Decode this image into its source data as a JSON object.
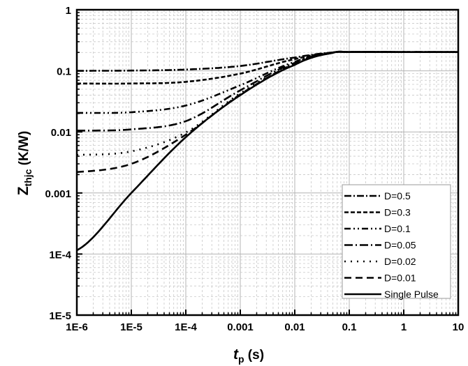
{
  "chart_data": {
    "type": "line",
    "title": "",
    "xlabel": "t_p (s)",
    "xlabel_main": "t",
    "xlabel_sub": "p",
    "xlabel_unit": " (s)",
    "ylabel": "Z_thjc (K/W)",
    "ylabel_main": "Z",
    "ylabel_sub": "thjc",
    "ylabel_unit": " (K/W)",
    "xscale": "log",
    "yscale": "log",
    "xlim": [
      1e-06,
      10
    ],
    "ylim": [
      1e-05,
      1
    ],
    "x_ticks": [
      "1E-6",
      "1E-5",
      "1E-4",
      "0.001",
      "0.01",
      "0.1",
      "1",
      "10"
    ],
    "y_ticks": [
      "1E-5",
      "1E-4",
      "0.001",
      "0.01",
      "0.1",
      "1"
    ],
    "grid": true,
    "legend_position": "lower right",
    "x": [
      1e-06,
      1e-05,
      0.0001,
      0.001,
      0.01,
      0.05,
      0.1,
      1,
      10
    ],
    "series": [
      {
        "name": "D=0.5",
        "dash": "10,3,2,3",
        "values": [
          0.1,
          0.101,
          0.105,
          0.12,
          0.165,
          0.2,
          0.203,
          0.203,
          0.203
        ]
      },
      {
        "name": "D=0.3",
        "dash": "6,3",
        "values": [
          0.062,
          0.062,
          0.066,
          0.09,
          0.155,
          0.199,
          0.203,
          0.203,
          0.203
        ]
      },
      {
        "name": "D=0.1",
        "dash": "9,4,2,4,2,4",
        "values": [
          0.0205,
          0.021,
          0.027,
          0.058,
          0.14,
          0.198,
          0.203,
          0.203,
          0.203
        ]
      },
      {
        "name": "D=0.05",
        "dash": "12,4,2,4",
        "values": [
          0.0105,
          0.011,
          0.015,
          0.048,
          0.135,
          0.197,
          0.203,
          0.203,
          0.203
        ]
      },
      {
        "name": "D=0.02",
        "dash": "2,7",
        "values": [
          0.0042,
          0.0048,
          0.0098,
          0.043,
          0.13,
          0.197,
          0.203,
          0.203,
          0.203
        ]
      },
      {
        "name": "D=0.01",
        "dash": "10,6",
        "values": [
          0.0022,
          0.003,
          0.009,
          0.041,
          0.128,
          0.197,
          0.203,
          0.203,
          0.203
        ]
      },
      {
        "name": "Single Pulse",
        "dash": "",
        "values": [
          0.000115,
          0.001,
          0.0082,
          0.04,
          0.125,
          0.197,
          0.203,
          0.203,
          0.203
        ]
      }
    ]
  },
  "colors": {
    "line": "#000000",
    "grid": "#c8c8c8",
    "major_grid": "#b4b4b4",
    "background": "#ffffff"
  }
}
